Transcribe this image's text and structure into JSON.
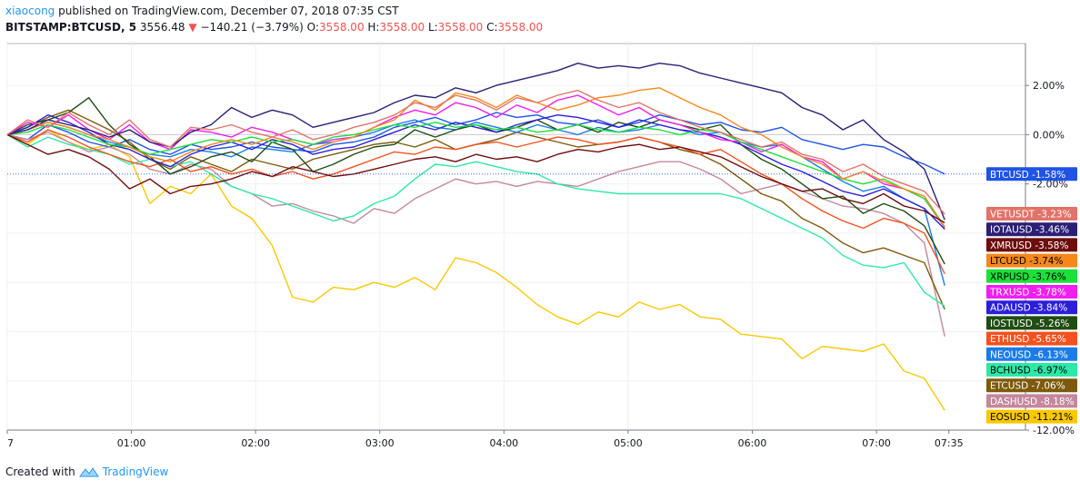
{
  "header": {
    "author": "xiaocong",
    "published_text": " published on TradingView.com, December 07, 2018 07:35 CST",
    "symbol": "BITSTAMP:BTCUSD, 5",
    "price": "3556.48",
    "change": "−140.21 (−3.79%)",
    "o_label": "O:",
    "o_value": "3558.00",
    "h_label": "H:",
    "h_value": "3558.00",
    "l_label": "L:",
    "l_value": "3558.00",
    "c_label": "C:",
    "c_value": "3558.00"
  },
  "footer": {
    "created_with": "Created with",
    "brand": "TradingView"
  },
  "chart_data": {
    "type": "line",
    "x_ticks": [
      "7",
      "01:00",
      "02:00",
      "03:00",
      "04:00",
      "05:00",
      "06:00",
      "07:00",
      "07:35"
    ],
    "x_tick_hours": [
      0,
      1,
      2,
      3,
      4,
      5,
      6,
      7,
      7.583
    ],
    "x_range_hours": [
      0,
      8.2
    ],
    "y_ticks": [
      "2.00%",
      "0.00%",
      "-2.00%",
      "-12.00%"
    ],
    "y_tick_values": [
      2,
      0,
      -2,
      -12
    ],
    "ylim": [
      -12,
      3.7
    ],
    "grid": true,
    "series": [
      {
        "name": "EOSUSD",
        "label": "-11.21%",
        "color": "#f9c800",
        "values": [
          0,
          -0.4,
          0.2,
          -0.3,
          -0.6,
          -0.4,
          -0.9,
          -2.8,
          -2.1,
          -2.4,
          -1.6,
          -2.9,
          -3.4,
          -4.5,
          -6.6,
          -6.8,
          -6.2,
          -6.3,
          -6.0,
          -6.2,
          -5.8,
          -6.3,
          -5.0,
          -5.2,
          -5.6,
          -6.2,
          -6.9,
          -7.4,
          -7.7,
          -7.2,
          -7.4,
          -6.8,
          -7.1,
          -6.9,
          -7.4,
          -7.5,
          -8.1,
          -8.2,
          -8.3,
          -9.1,
          -8.6,
          -8.7,
          -8.8,
          -8.5,
          -9.6,
          -9.9,
          -11.2
        ]
      },
      {
        "name": "BTCUSD",
        "label": "-1.58%",
        "color": "#1e53e5",
        "values": [
          0,
          -0.2,
          0.4,
          0.1,
          -0.3,
          -0.5,
          -0.2,
          -0.6,
          -0.8,
          -0.4,
          -0.6,
          -0.5,
          -0.3,
          -0.5,
          -0.6,
          -0.7,
          -0.4,
          -0.3,
          -0.1,
          0.3,
          0.5,
          0.7,
          0.4,
          0.6,
          0.9,
          0.7,
          0.8,
          0.5,
          0.4,
          0.6,
          0.3,
          0.5,
          0.8,
          0.6,
          0.4,
          0.5,
          0.2,
          0.1,
          0.3,
          -0.2,
          -0.4,
          -0.6,
          -0.4,
          -0.5,
          -0.9,
          -1.2,
          -1.6
        ]
      },
      {
        "name": "DASHUSD",
        "label": "-8.18%",
        "color": "#c4889c",
        "values": [
          0,
          -0.2,
          0.1,
          -0.3,
          -0.7,
          -0.5,
          -0.8,
          -1.4,
          -1.6,
          -1.2,
          -1.4,
          -2.1,
          -2.4,
          -2.9,
          -2.8,
          -3.1,
          -3.3,
          -3.6,
          -3.0,
          -3.2,
          -2.6,
          -2.2,
          -1.8,
          -2.0,
          -1.9,
          -2.1,
          -1.9,
          -2.0,
          -2.1,
          -1.8,
          -1.5,
          -1.3,
          -1.1,
          -1.1,
          -1.4,
          -1.8,
          -2.4,
          -2.2,
          -2.0,
          -2.3,
          -2.6,
          -2.9,
          -3.0,
          -3.2,
          -3.6,
          -4.4,
          -8.2
        ]
      },
      {
        "name": "ETCUSD",
        "label": "-7.06%",
        "color": "#7d5a0b",
        "values": [
          0,
          0.3,
          0.7,
          1.0,
          0.6,
          0.2,
          -0.3,
          -1.0,
          -1.4,
          -0.9,
          -1.2,
          -1.5,
          -1.0,
          -1.2,
          -1.4,
          -1.0,
          -0.8,
          -0.6,
          -0.4,
          -0.3,
          -0.5,
          -0.2,
          -0.6,
          -0.4,
          -0.2,
          0.1,
          -0.1,
          -0.3,
          -0.5,
          -0.4,
          -0.3,
          -0.1,
          -0.3,
          -0.6,
          -0.8,
          -1.2,
          -1.8,
          -2.4,
          -2.7,
          -3.4,
          -3.8,
          -4.4,
          -4.8,
          -4.6,
          -4.9,
          -5.2,
          -7.1
        ]
      },
      {
        "name": "BCHUSD",
        "label": "-6.97%",
        "color": "#2ee8a8",
        "values": [
          0,
          -0.5,
          -0.1,
          -0.4,
          -0.6,
          -0.8,
          -1.2,
          -1.0,
          -1.3,
          -1.1,
          -1.6,
          -2.1,
          -2.4,
          -2.6,
          -2.9,
          -3.2,
          -3.5,
          -3.3,
          -2.8,
          -2.5,
          -1.8,
          -1.2,
          -1.3,
          -1.1,
          -1.3,
          -1.5,
          -1.6,
          -2.0,
          -2.2,
          -2.3,
          -2.4,
          -2.4,
          -2.4,
          -2.4,
          -2.4,
          -2.4,
          -2.6,
          -3.0,
          -3.4,
          -3.8,
          -4.2,
          -4.9,
          -5.3,
          -5.4,
          -5.2,
          -6.4,
          -6.97
        ]
      },
      {
        "name": "NEOUSD",
        "label": "-6.13%",
        "color": "#1b7be8",
        "values": [
          0,
          0.2,
          0.5,
          0.3,
          0.0,
          -0.3,
          -0.5,
          -0.8,
          -0.9,
          -0.6,
          -0.7,
          -0.9,
          -0.5,
          -0.6,
          -0.7,
          -0.4,
          -0.3,
          -0.1,
          0.1,
          0.4,
          0.6,
          0.3,
          0.2,
          0.5,
          0.3,
          0.1,
          0.4,
          0.2,
          0.0,
          0.3,
          0.1,
          0.2,
          0.4,
          0.2,
          0.0,
          0.1,
          -0.3,
          -0.5,
          -0.4,
          -0.9,
          -1.4,
          -1.9,
          -2.3,
          -2.1,
          -2.6,
          -3.0,
          -6.13
        ]
      },
      {
        "name": "ETHUSD",
        "label": "-5.65%",
        "color": "#f4511e",
        "values": [
          0,
          -0.3,
          0.2,
          -0.1,
          -0.5,
          -0.8,
          -1.1,
          -1.3,
          -1.0,
          -1.5,
          -1.3,
          -1.6,
          -1.4,
          -1.7,
          -1.5,
          -1.8,
          -1.6,
          -1.3,
          -1.0,
          -0.7,
          -0.8,
          -0.5,
          -0.6,
          -0.4,
          -0.3,
          -0.5,
          -0.3,
          -0.1,
          -0.2,
          -0.4,
          -0.3,
          -0.1,
          -0.3,
          -0.5,
          -0.8,
          -0.6,
          -1.1,
          -1.6,
          -2.0,
          -2.6,
          -3.1,
          -3.5,
          -3.8,
          -3.4,
          -3.6,
          -4.0,
          -5.65
        ]
      },
      {
        "name": "IOSTUSD",
        "label": "-5.26%",
        "color": "#1f4d12",
        "values": [
          0,
          0.4,
          0.6,
          0.9,
          1.5,
          0.4,
          -0.4,
          -0.9,
          -1.6,
          -1.3,
          -0.9,
          -0.7,
          -1.1,
          -0.3,
          -0.6,
          -1.5,
          -1.2,
          -0.8,
          -0.5,
          -0.4,
          0.2,
          -0.1,
          0.2,
          0.4,
          0.1,
          0.3,
          0.6,
          0.2,
          0.4,
          0.1,
          0.5,
          0.3,
          0.6,
          0.4,
          0.2,
          0.4,
          -0.4,
          -1.0,
          -1.4,
          -2.0,
          -2.6,
          -2.5,
          -3.2,
          -2.8,
          -3.1,
          -3.7,
          -5.26
        ]
      },
      {
        "name": "ADAUSD",
        "label": "-3.84%",
        "color": "#2b20d8",
        "values": [
          0,
          0.3,
          0.8,
          0.5,
          0.1,
          -0.4,
          -0.6,
          -1.0,
          -1.3,
          -0.8,
          -0.5,
          -0.3,
          -0.6,
          -0.2,
          -0.4,
          -0.8,
          -0.6,
          -0.5,
          -0.2,
          0.1,
          0.4,
          0.2,
          0.5,
          0.3,
          0.1,
          0.4,
          0.6,
          0.8,
          0.7,
          0.5,
          0.3,
          0.6,
          0.4,
          0.2,
          0.1,
          -0.1,
          -0.4,
          -0.8,
          -1.2,
          -1.5,
          -1.9,
          -2.3,
          -2.5,
          -2.2,
          -2.6,
          -3.0,
          -3.84
        ]
      },
      {
        "name": "TRXUSD",
        "label": "-3.78%",
        "color": "#f01ef0",
        "values": [
          0,
          0.5,
          0.3,
          0.8,
          0.2,
          -0.2,
          0.4,
          -0.3,
          -0.6,
          0.2,
          0.1,
          -0.1,
          0.3,
          0.1,
          -0.2,
          -0.4,
          -0.2,
          -0.1,
          0.3,
          0.7,
          1.0,
          0.8,
          1.3,
          1.1,
          0.7,
          1.2,
          0.9,
          1.4,
          1.6,
          1.2,
          0.8,
          1.1,
          0.6,
          0.4,
          0.1,
          -0.2,
          -0.3,
          -0.7,
          -0.4,
          -0.9,
          -1.1,
          -1.8,
          -1.5,
          -2.0,
          -2.2,
          -2.6,
          -3.78
        ]
      },
      {
        "name": "XRPUSD",
        "label": "-3.76%",
        "color": "#1de03a",
        "values": [
          0,
          0.1,
          0.4,
          0.2,
          -0.1,
          -0.4,
          -0.5,
          -0.8,
          -0.6,
          -0.4,
          -0.2,
          -0.3,
          -0.1,
          -0.3,
          -0.2,
          -0.4,
          -0.1,
          0.0,
          0.2,
          0.4,
          0.3,
          0.5,
          0.3,
          0.4,
          0.2,
          0.3,
          0.1,
          0.2,
          0.4,
          0.2,
          0.1,
          0.3,
          0.2,
          0.0,
          0.2,
          0.1,
          -0.3,
          -0.6,
          -0.9,
          -1.2,
          -1.5,
          -1.8,
          -2.0,
          -1.8,
          -2.2,
          -2.6,
          -3.76
        ]
      },
      {
        "name": "LTCUSD",
        "label": "-3.74%",
        "color": "#f6881a",
        "values": [
          0,
          0.2,
          0.5,
          0.3,
          0.0,
          -0.2,
          -0.5,
          -0.9,
          -1.1,
          -0.7,
          -0.4,
          -0.2,
          -0.4,
          -0.1,
          -0.3,
          -0.6,
          -0.3,
          -0.1,
          0.3,
          0.6,
          1.4,
          1.0,
          1.7,
          1.5,
          1.1,
          1.6,
          1.3,
          1.0,
          1.2,
          1.5,
          1.6,
          1.8,
          1.9,
          1.5,
          1.1,
          0.8,
          0.3,
          0.0,
          -0.5,
          -0.9,
          -1.2,
          -1.8,
          -1.5,
          -1.9,
          -2.2,
          -2.5,
          -3.74
        ]
      },
      {
        "name": "XMRUSD",
        "label": "-3.58%",
        "color": "#6e0d0d",
        "values": [
          0,
          -0.4,
          -0.8,
          -0.6,
          -0.9,
          -1.4,
          -2.2,
          -1.8,
          -2.4,
          -2.1,
          -2.0,
          -1.8,
          -1.5,
          -1.7,
          -1.3,
          -1.5,
          -1.7,
          -1.6,
          -1.4,
          -1.2,
          -1.0,
          -0.9,
          -1.1,
          -0.8,
          -1.0,
          -0.9,
          -1.1,
          -0.8,
          -0.6,
          -0.7,
          -0.5,
          -0.4,
          -0.6,
          -0.5,
          -0.7,
          -0.9,
          -1.3,
          -1.7,
          -2.0,
          -2.3,
          -2.2,
          -2.6,
          -2.8,
          -2.4,
          -2.9,
          -3.1,
          -3.58
        ]
      },
      {
        "name": "IOTAUSD",
        "label": "-3.46%",
        "color": "#2a1f75",
        "values": [
          0,
          0.2,
          0.6,
          0.4,
          0.2,
          -0.1,
          0.2,
          -0.3,
          -0.5,
          0.1,
          0.4,
          1.1,
          0.7,
          1.0,
          0.8,
          0.3,
          0.5,
          0.7,
          0.9,
          1.3,
          1.6,
          1.5,
          1.9,
          1.7,
          2.0,
          2.2,
          2.4,
          2.6,
          2.9,
          2.7,
          2.8,
          2.7,
          2.9,
          2.8,
          2.5,
          2.3,
          2.1,
          1.9,
          1.7,
          1.1,
          0.8,
          0.2,
          0.6,
          -0.2,
          -0.7,
          -1.4,
          -3.46
        ]
      },
      {
        "name": "VETUSDT",
        "label": "-3.23%",
        "color": "#e2736a",
        "values": [
          0,
          0.6,
          0.3,
          0.9,
          0.4,
          0.0,
          0.6,
          -0.2,
          -0.5,
          0.3,
          0.2,
          0.4,
          0.1,
          -0.1,
          0.2,
          -0.2,
          0.0,
          0.3,
          0.5,
          0.8,
          1.3,
          1.1,
          1.6,
          1.4,
          1.0,
          1.5,
          1.3,
          1.6,
          1.8,
          1.4,
          1.1,
          1.3,
          0.9,
          0.6,
          0.3,
          0.1,
          -0.2,
          -0.5,
          -0.3,
          -0.8,
          -1.0,
          -1.5,
          -1.2,
          -1.7,
          -2.0,
          -2.3,
          -3.23
        ]
      }
    ]
  }
}
